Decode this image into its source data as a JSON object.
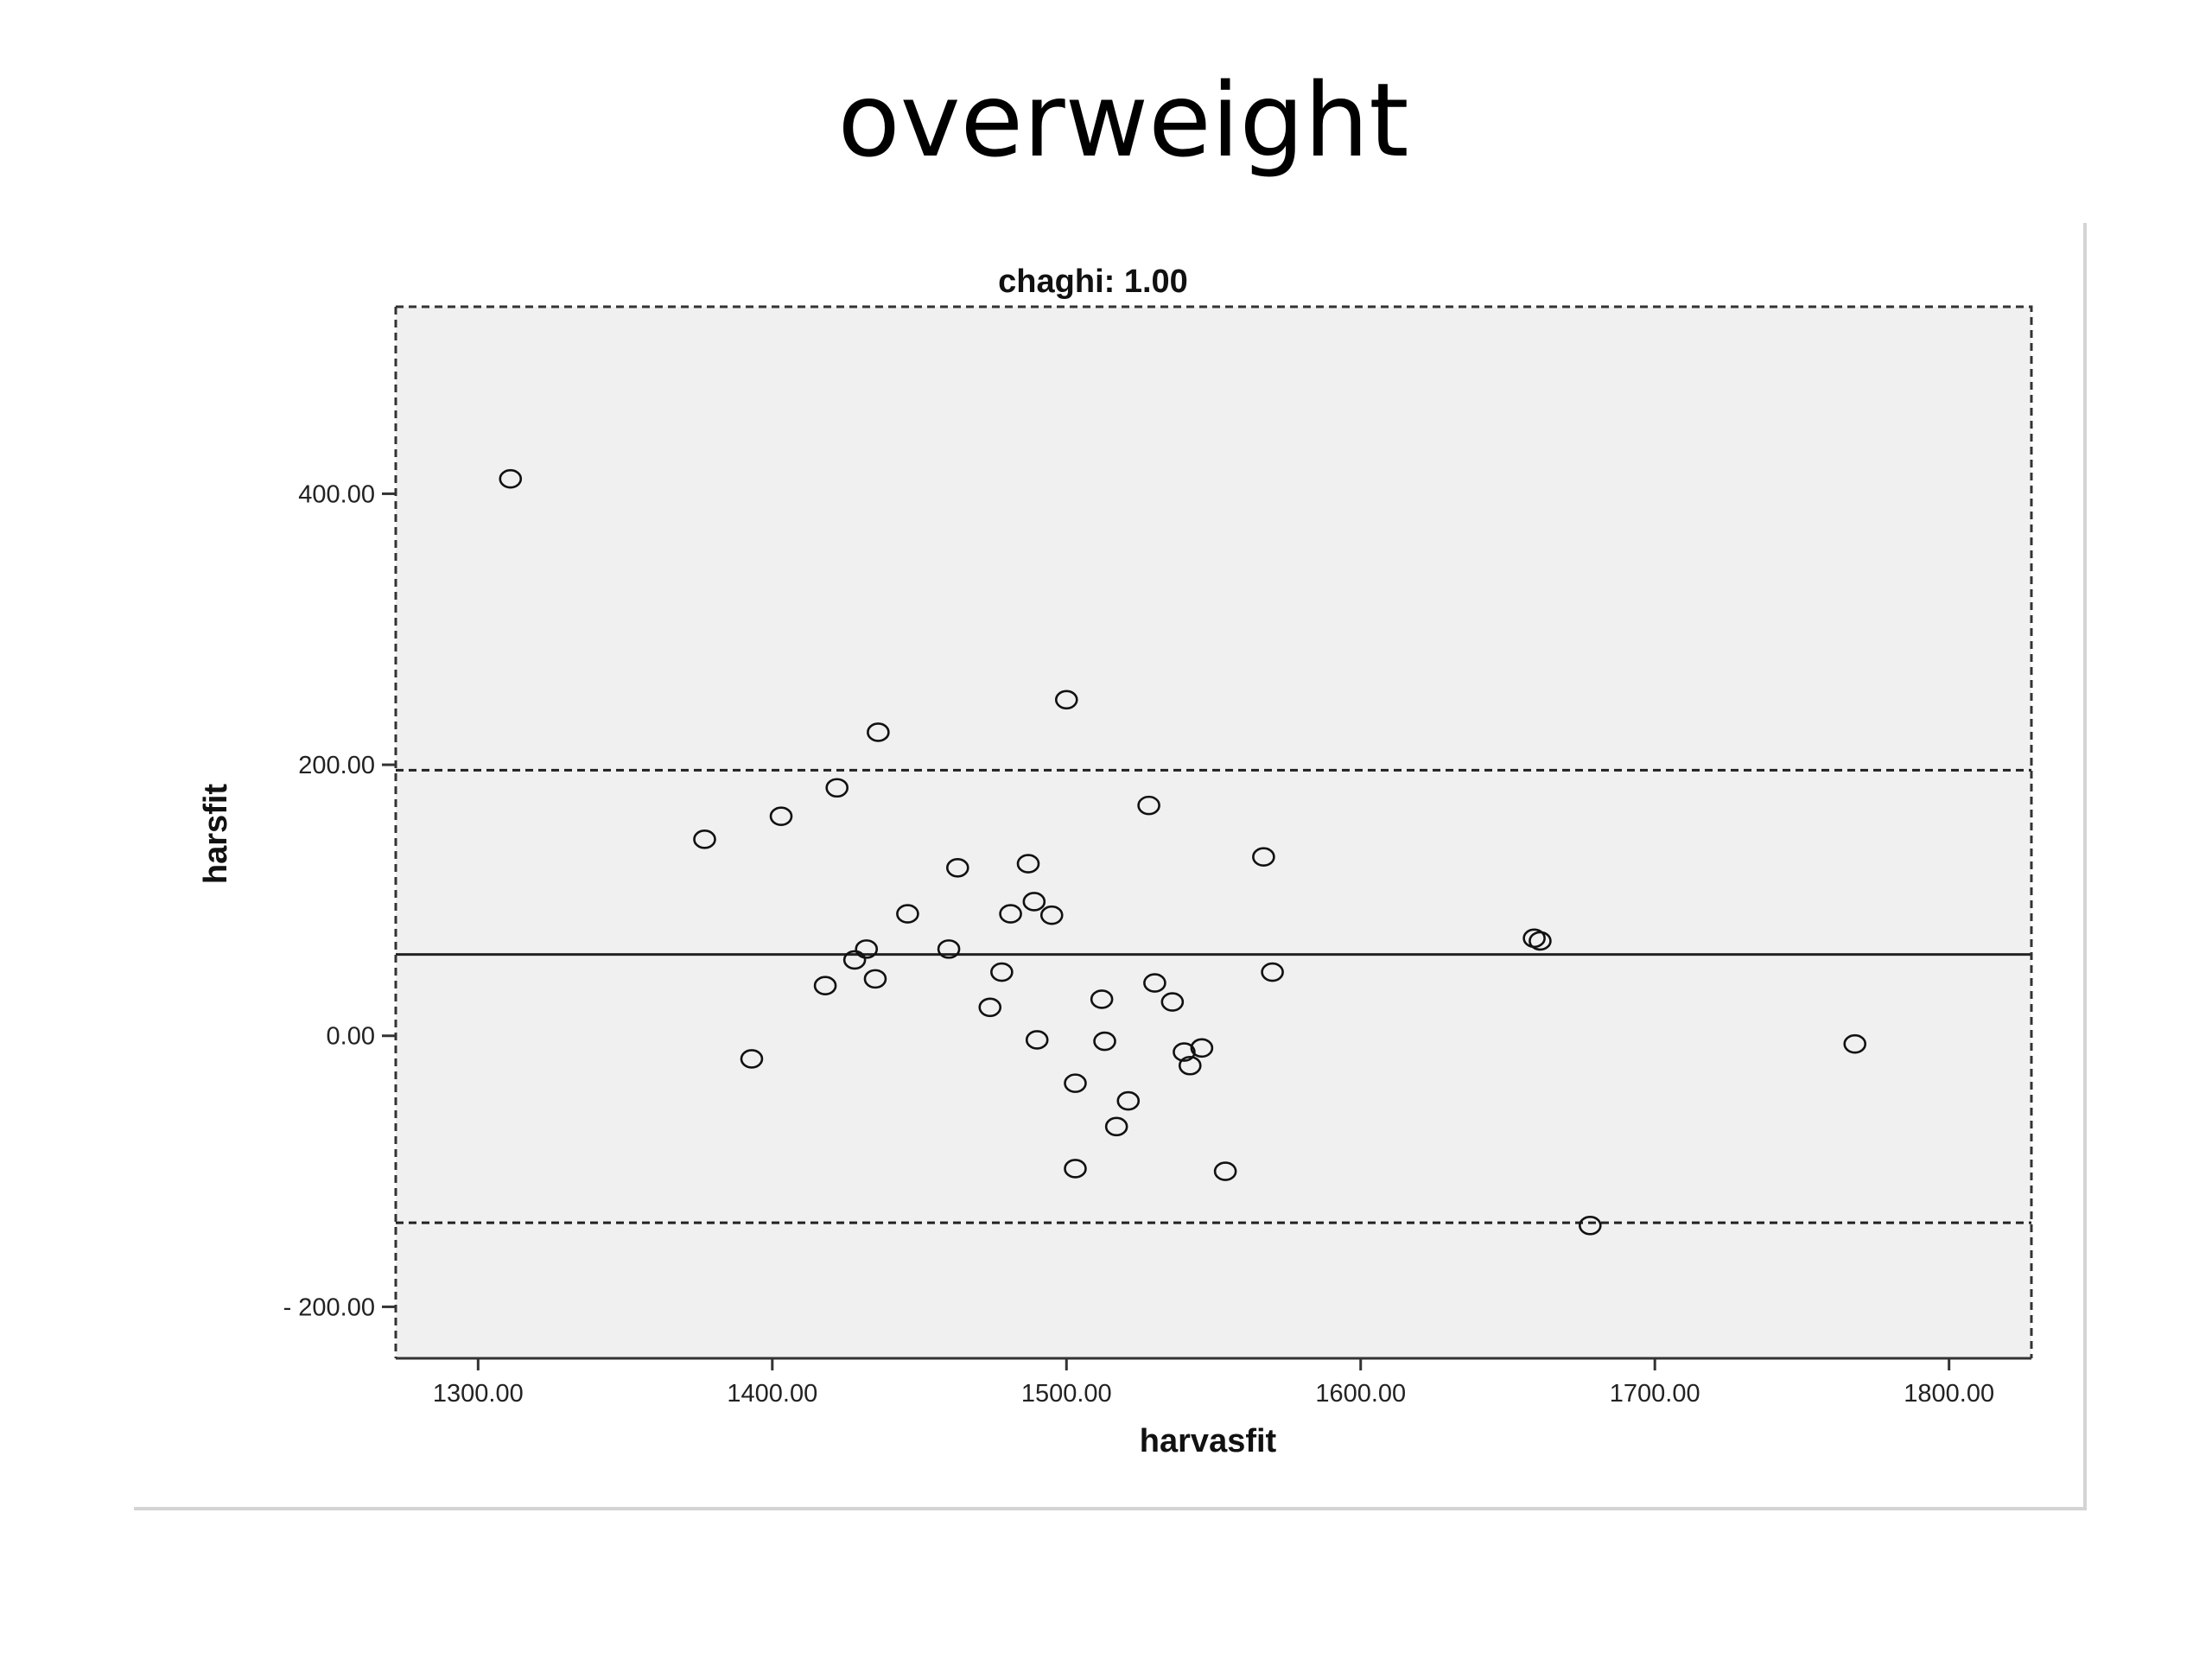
{
  "slide": {
    "title": "overweight"
  },
  "chart_data": {
    "type": "scatter",
    "title": "chaghi: 1.00",
    "xlabel": "harvasfit",
    "ylabel": "harsfit",
    "xlim": [
      1272,
      1828
    ],
    "ylim": [
      -238,
      538
    ],
    "xticks": [
      1300,
      1400,
      1500,
      1600,
      1700,
      1800
    ],
    "xtick_labels": [
      "1300.00",
      "1400.00",
      "1500.00",
      "1600.00",
      "1700.00",
      "1800.00"
    ],
    "yticks": [
      -200,
      0,
      200,
      400
    ],
    "ytick_labels": [
      "- 200.00",
      "0.00",
      "200.00",
      "400.00"
    ],
    "grid": false,
    "marker": "open-circle",
    "reference_lines": [
      {
        "type": "mean",
        "y": 60,
        "style": "solid"
      },
      {
        "type": "upper-limit",
        "y": 196,
        "style": "dashed"
      },
      {
        "type": "lower-limit",
        "y": -138,
        "style": "dashed"
      }
    ],
    "panel_background": "#f0f0f0",
    "points": [
      {
        "x": 1311,
        "y": 411
      },
      {
        "x": 1377,
        "y": 145
      },
      {
        "x": 1393,
        "y": -17
      },
      {
        "x": 1403,
        "y": 162
      },
      {
        "x": 1418,
        "y": 37
      },
      {
        "x": 1422,
        "y": 183
      },
      {
        "x": 1428,
        "y": 56
      },
      {
        "x": 1432,
        "y": 64
      },
      {
        "x": 1435,
        "y": 42
      },
      {
        "x": 1436,
        "y": 224
      },
      {
        "x": 1446,
        "y": 90
      },
      {
        "x": 1460,
        "y": 64
      },
      {
        "x": 1463,
        "y": 124
      },
      {
        "x": 1474,
        "y": 21
      },
      {
        "x": 1478,
        "y": 47
      },
      {
        "x": 1481,
        "y": 90
      },
      {
        "x": 1487,
        "y": 127
      },
      {
        "x": 1489,
        "y": 99
      },
      {
        "x": 1490,
        "y": -3
      },
      {
        "x": 1495,
        "y": 89
      },
      {
        "x": 1500,
        "y": 248
      },
      {
        "x": 1503,
        "y": -35
      },
      {
        "x": 1503,
        "y": -98
      },
      {
        "x": 1512,
        "y": 27
      },
      {
        "x": 1513,
        "y": -4
      },
      {
        "x": 1517,
        "y": -67
      },
      {
        "x": 1521,
        "y": -48
      },
      {
        "x": 1528,
        "y": 170
      },
      {
        "x": 1530,
        "y": 39
      },
      {
        "x": 1536,
        "y": 25
      },
      {
        "x": 1540,
        "y": -12
      },
      {
        "x": 1542,
        "y": -22
      },
      {
        "x": 1546,
        "y": -9
      },
      {
        "x": 1554,
        "y": -100
      },
      {
        "x": 1567,
        "y": 132
      },
      {
        "x": 1570,
        "y": 47
      },
      {
        "x": 1659,
        "y": 72
      },
      {
        "x": 1661,
        "y": 70
      },
      {
        "x": 1678,
        "y": -140
      },
      {
        "x": 1768,
        "y": -6
      }
    ]
  }
}
